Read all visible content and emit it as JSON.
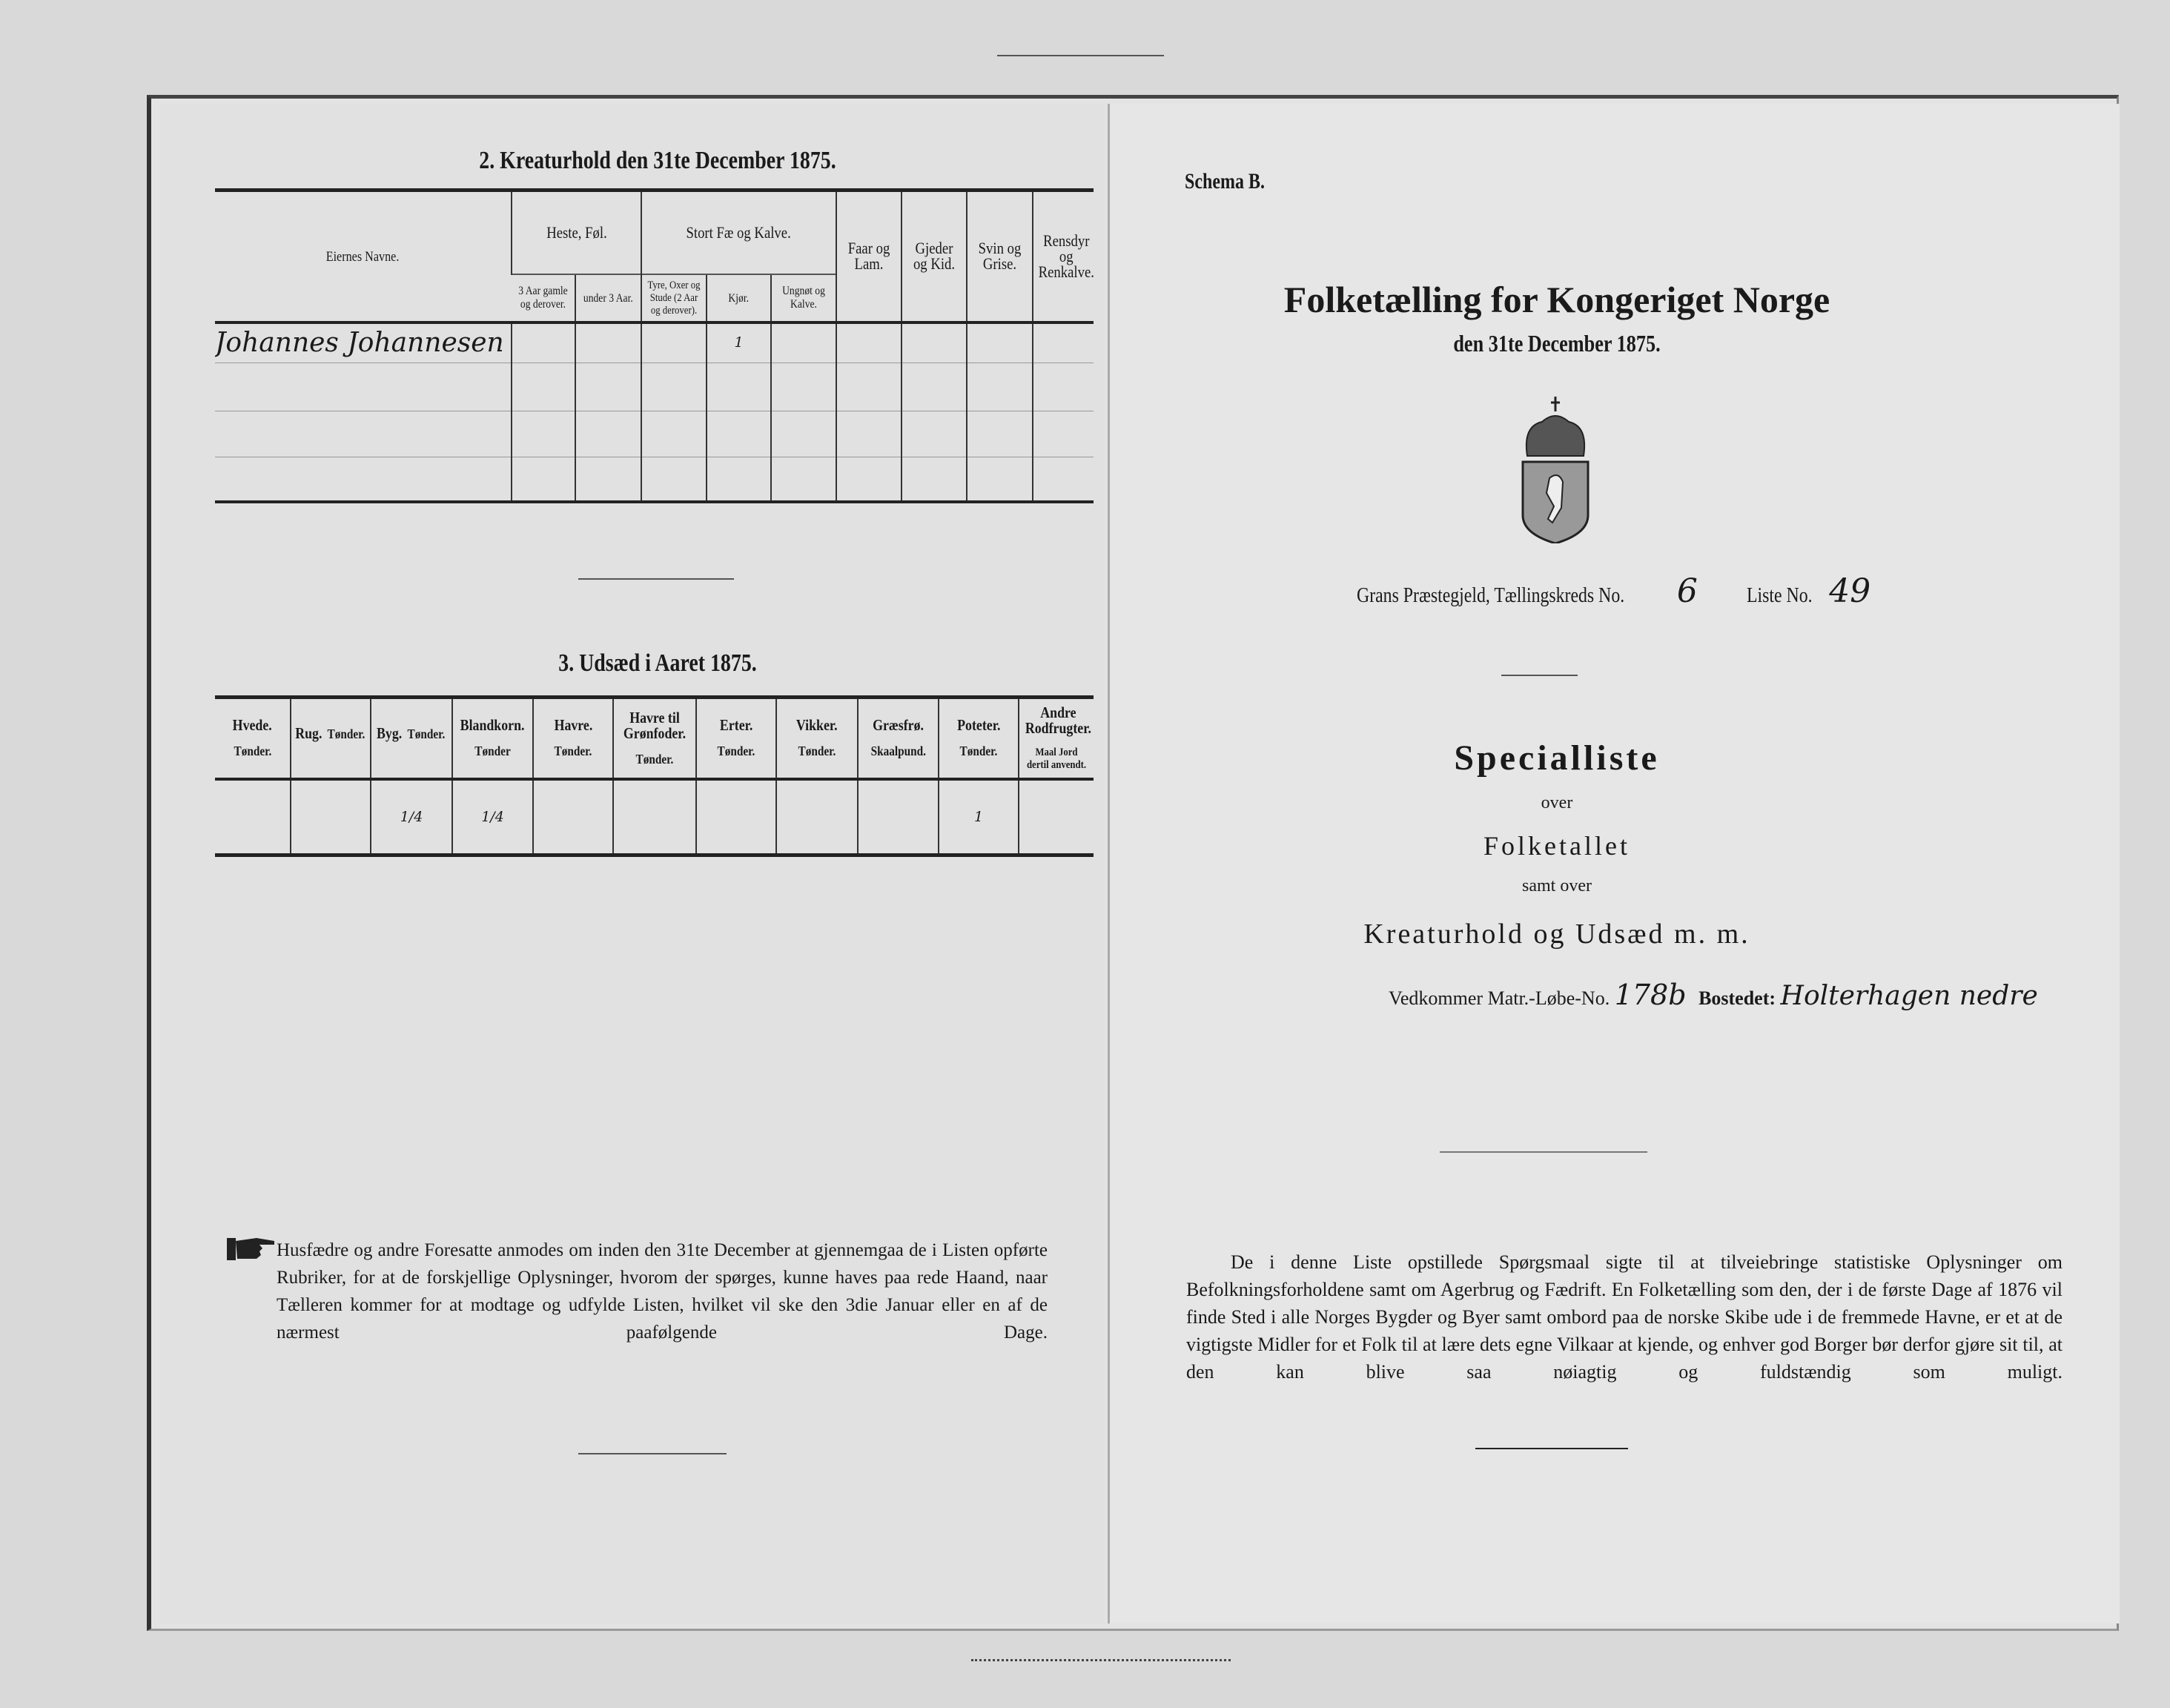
{
  "left_page": {
    "section2": {
      "title": "2.  Kreaturhold den 31te December 1875.",
      "columns": {
        "owner": "Eiernes Navne.",
        "horses_group": "Heste, Føl.",
        "horses_old": "3 Aar gamle og derover.",
        "horses_young": "under 3 Aar.",
        "cattle_group": "Stort Fæ og Kalve.",
        "bulls": "Tyre, Oxer og Stude (2 Aar og derover).",
        "cows": "Kjør.",
        "young_cattle": "Ungnøt og Kalve.",
        "sheep": "Faar og Lam.",
        "goats": "Gjeder og Kid.",
        "pigs": "Svin og Grise.",
        "reindeer": "Rensdyr og Renkalve."
      },
      "rows": [
        {
          "owner": "Johannes Johannesen",
          "horses_old": "",
          "horses_young": "",
          "bulls": "",
          "cows": "1",
          "young_cattle": "",
          "sheep": "",
          "goats": "",
          "pigs": "",
          "reindeer": ""
        }
      ]
    },
    "section3": {
      "title": "3.  Udsæd i Aaret 1875.",
      "columns": [
        {
          "name": "Hvede.",
          "unit": "Tønder."
        },
        {
          "name": "Rug.",
          "unit": "Tønder."
        },
        {
          "name": "Byg.",
          "unit": "Tønder."
        },
        {
          "name": "Blandkorn.",
          "unit": "Tønder"
        },
        {
          "name": "Havre.",
          "unit": "Tønder."
        },
        {
          "name": "Havre til Grønfoder.",
          "unit": "Tønder."
        },
        {
          "name": "Erter.",
          "unit": "Tønder."
        },
        {
          "name": "Vikker.",
          "unit": "Tønder."
        },
        {
          "name": "Græsfrø.",
          "unit": "Skaalpund."
        },
        {
          "name": "Poteter.",
          "unit": "Tønder."
        },
        {
          "name": "Andre Rodfrugter.",
          "unit": "Maal Jord dertil anvendt."
        }
      ],
      "values": [
        "",
        "",
        "1/4",
        "1/4",
        "",
        "",
        "",
        "",
        "",
        "1",
        ""
      ]
    },
    "notice": "Husfædre og andre Foresatte anmodes om inden den 31te December at gjennemgaa de i Listen opførte Rubriker, for at de forskjellige Oplysninger, hvorom der spørges, kunne haves paa rede Haand, naar Tælleren kommer for at modtage og udfylde Listen, hvilket vil ske den 3die Januar eller en af de nærmest paafølgende Dage.",
    "notice_icon": "pointing-hand-icon"
  },
  "right_page": {
    "schema": "Schema B.",
    "title": "Folketælling for Kongeriget Norge",
    "date": "den 31te December 1875.",
    "emblem": "norwegian-coat-of-arms",
    "parish_label": "Grans Præstegjeld, Tællingskreds No.",
    "district_no": "6",
    "list_label": "Liste No.",
    "list_no": "49",
    "heading": "Specialliste",
    "over": "over",
    "folketallet": "Folketallet",
    "samt_over": "samt over",
    "subject": "Kreaturhold og Udsæd m. m.",
    "matr_label": "Vedkommer Matr.-Løbe-No.",
    "matr_no": "178b",
    "bosted_label": "Bostedet:",
    "bosted": "Holterhagen nedre",
    "paragraph": "De i denne Liste opstillede Spørgsmaal sigte til at tilveiebringe statistiske Oplysninger om Befolkningsforholdene samt om Agerbrug og Fædrift. En Folketælling som den, der i de første Dage af 1876 vil finde Sted i alle Norges Bygder og Byer samt ombord paa de norske Skibe ude i de fremmede Havne, er et at de vigtigste Midler for et Folk til at lære dets egne Vilkaar at kjende, og enhver god Borger bør derfor gjøre sit til, at den kan blive saa nøiagtig og fuldstændig som muligt."
  }
}
